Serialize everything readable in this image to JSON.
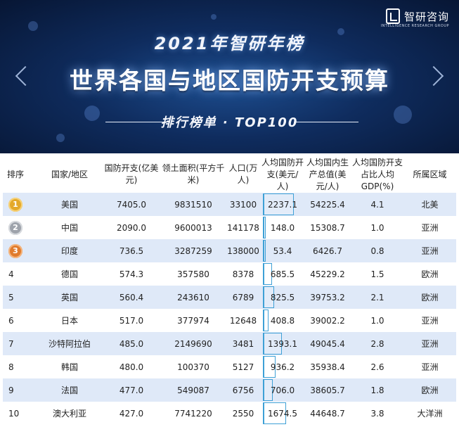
{
  "header": {
    "logo_text": "智研咨询",
    "logo_sub": "INTELLIGENCE RESEARCH GROUP",
    "year_title": "2021年智研年榜",
    "main_title": "世界各国与地区国防开支预算",
    "subtitle": "排行榜单 · TOP100"
  },
  "colors": {
    "bar_outline": "#3ea0d6",
    "row_shade": "#dfe9f8",
    "banner": "#0f2c5e"
  },
  "columns": [
    "排序",
    "国家/地区",
    "国防开支(亿美元)",
    "领土面积(平方千米)",
    "人口(万人)",
    "人均国防开支(美元/人)",
    "人均国内生产总值(美元/人)",
    "人均国防开支占比人均GDP(%)",
    "所属区域"
  ],
  "chart_data": {
    "type": "table",
    "bar_column": "人均国防开支(美元/人)",
    "bar_max": 2237.1,
    "rows": [
      {
        "rank": "1",
        "medal": "gold",
        "country": "美国",
        "spending": "7405.0",
        "area": "9831510",
        "population": "33100",
        "per_capita": "2237.1",
        "gdp_per_capita": "54225.4",
        "ratio": "4.1",
        "region": "北美",
        "shaded": true
      },
      {
        "rank": "2",
        "medal": "silver",
        "country": "中国",
        "spending": "2090.0",
        "area": "9600013",
        "population": "141178",
        "per_capita": "148.0",
        "gdp_per_capita": "15308.7",
        "ratio": "1.0",
        "region": "亚洲",
        "shaded": false
      },
      {
        "rank": "3",
        "medal": "bronze",
        "country": "印度",
        "spending": "736.5",
        "area": "3287259",
        "population": "138000",
        "per_capita": "53.4",
        "gdp_per_capita": "6426.7",
        "ratio": "0.8",
        "region": "亚洲",
        "shaded": true
      },
      {
        "rank": "4",
        "medal": "",
        "country": "德国",
        "spending": "574.3",
        "area": "357580",
        "population": "8378",
        "per_capita": "685.5",
        "gdp_per_capita": "45229.2",
        "ratio": "1.5",
        "region": "欧洲",
        "shaded": false
      },
      {
        "rank": "5",
        "medal": "",
        "country": "英国",
        "spending": "560.4",
        "area": "243610",
        "population": "6789",
        "per_capita": "825.5",
        "gdp_per_capita": "39753.2",
        "ratio": "2.1",
        "region": "欧洲",
        "shaded": true
      },
      {
        "rank": "6",
        "medal": "",
        "country": "日本",
        "spending": "517.0",
        "area": "377974",
        "population": "12648",
        "per_capita": "408.8",
        "gdp_per_capita": "39002.2",
        "ratio": "1.0",
        "region": "亚洲",
        "shaded": false
      },
      {
        "rank": "7",
        "medal": "",
        "country": "沙特阿拉伯",
        "spending": "485.0",
        "area": "2149690",
        "population": "3481",
        "per_capita": "1393.1",
        "gdp_per_capita": "49045.4",
        "ratio": "2.8",
        "region": "亚洲",
        "shaded": true
      },
      {
        "rank": "8",
        "medal": "",
        "country": "韩国",
        "spending": "480.0",
        "area": "100370",
        "population": "5127",
        "per_capita": "936.2",
        "gdp_per_capita": "35938.4",
        "ratio": "2.6",
        "region": "亚洲",
        "shaded": false
      },
      {
        "rank": "9",
        "medal": "",
        "country": "法国",
        "spending": "477.0",
        "area": "549087",
        "population": "6756",
        "per_capita": "706.0",
        "gdp_per_capita": "38605.7",
        "ratio": "1.8",
        "region": "欧洲",
        "shaded": true
      },
      {
        "rank": "10",
        "medal": "",
        "country": "澳大利亚",
        "spending": "427.0",
        "area": "7741220",
        "population": "2550",
        "per_capita": "1674.5",
        "gdp_per_capita": "44648.7",
        "ratio": "3.8",
        "region": "大洋洲",
        "shaded": false
      }
    ]
  }
}
